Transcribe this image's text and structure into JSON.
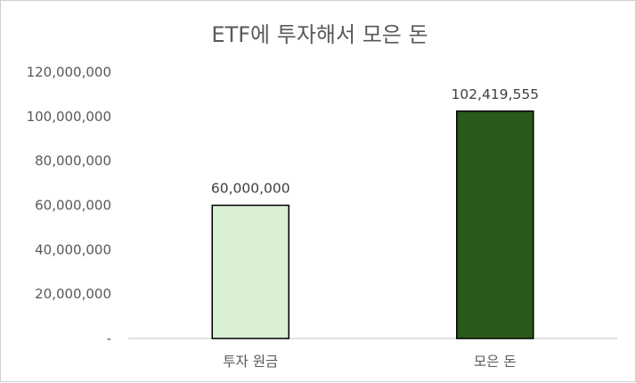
{
  "chart_data": {
    "type": "bar",
    "title": "ETF에 투자해서 모은 돈",
    "xlabel": "",
    "ylabel": "",
    "categories": [
      "투자 원금",
      "모은 돈"
    ],
    "values": [
      60000000,
      102419555
    ],
    "data_labels": [
      "60,000,000",
      "102,419,555"
    ],
    "ylim": [
      0,
      120000000
    ],
    "yticks": [
      0,
      20000000,
      40000000,
      60000000,
      80000000,
      100000000,
      120000000
    ],
    "ytick_labels": [
      "-",
      "20,000,000",
      "40,000,000",
      "60,000,000",
      "80,000,000",
      "100,000,000",
      "120,000,000"
    ],
    "grid": false,
    "legend": "none",
    "colors": {
      "bar_fills": [
        "#d9f0d3",
        "#2a5a1a"
      ],
      "bar_outline": "#000000",
      "axis_line": "#d9d9d9",
      "text": "#595959"
    }
  }
}
